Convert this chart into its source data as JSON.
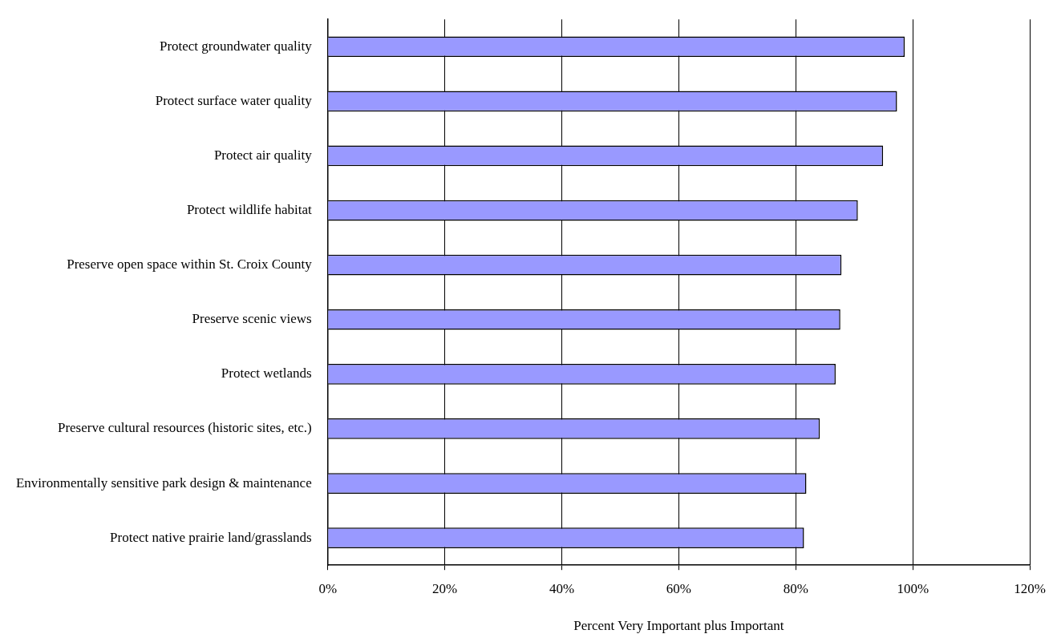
{
  "chart_data": {
    "type": "bar",
    "orientation": "horizontal",
    "xlabel": "Percent Very Important plus Important",
    "categories": [
      "Protect groundwater quality",
      "Protect surface water quality",
      "Protect air quality",
      "Protect wildlife habitat",
      "Preserve open space within St. Croix County",
      "Preserve scenic views",
      "Protect wetlands",
      "Preserve cultural resources (historic sites, etc.)",
      "Environmentally sensitive park design & maintenance",
      "Protect native prairie land/grasslands"
    ],
    "values": [
      98.6,
      97.3,
      94.9,
      90.6,
      87.8,
      87.6,
      86.8,
      84.1,
      81.8,
      81.4
    ],
    "color": "#9999ff",
    "xlim": [
      0,
      120
    ],
    "xticks": [
      {
        "value": 0,
        "label": "0%"
      },
      {
        "value": 20,
        "label": "20%"
      },
      {
        "value": 40,
        "label": "40%"
      },
      {
        "value": 60,
        "label": "60%"
      },
      {
        "value": 80,
        "label": "80%"
      },
      {
        "value": 100,
        "label": "100%"
      },
      {
        "value": 120,
        "label": "120%"
      }
    ],
    "grid": "x",
    "legend": false
  }
}
